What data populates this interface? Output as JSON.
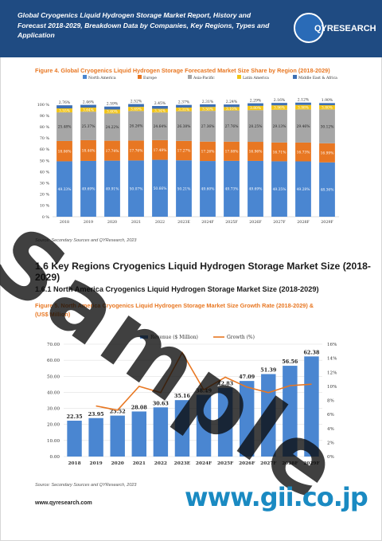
{
  "header": {
    "title": "Global Cryogenics Liquid Hydrogen Storage Market Report, History and Forecast 2018-2029, Breakdown Data by Companies, Key Regions, Types and Application",
    "logo_text": "QYRESEARCH"
  },
  "figure4": {
    "caption": "Figure 4.   Global Cryogenics Liquid Hydrogen Storage Forecasted Market Size Share by Region (2018-2029)",
    "source": "Source: Secondary Sources and QYResearch, 2023"
  },
  "section": {
    "h1": "1.6  Key Regions Cryogenics Liquid Hydrogen Storage Market Size (2018-2029)",
    "h2": "1.6.1  North America Cryogenics Liquid Hydrogen Storage Market Size (2018-2029)"
  },
  "figure5": {
    "caption_line1": "Figure 5.   North America Cryogenics Liquid Hydrogen Storage Market Size Growth Rate (2018-2029) &",
    "caption_line2": "(US$ Million)",
    "source": "Source: Secondary Sources and QYResearch, 2023"
  },
  "footer": {
    "url": "www.qyresearch.com"
  },
  "watermarks": {
    "sample": "Sample",
    "gii": "www.gii.co.jp"
  },
  "colors": {
    "header_bg": "#1f4b82",
    "north_america": "#4a86d1",
    "europe": "#e87722",
    "asia_pacific": "#a6a6a6",
    "latin_america": "#f2c417",
    "mea": "#3d6fb3",
    "revenue_bar": "#4a86d1",
    "growth_line": "#e87722"
  },
  "chart_data": [
    {
      "type": "bar",
      "stacked": true,
      "categories": [
        "2018",
        "2019",
        "2020",
        "2021",
        "2022",
        "2023E",
        "2024F",
        "2025F",
        "2026F",
        "2027F",
        "2028F",
        "2029F"
      ],
      "series": [
        {
          "name": "North America",
          "values": [
            49.33,
            49.69,
            49.91,
            50.07,
            50.66,
            50.21,
            49.6,
            49.73,
            49.69,
            49.35,
            49.28,
            48.36
          ]
        },
        {
          "name": "Europe",
          "values": [
            18.06,
            18.44,
            17.74,
            17.76,
            17.49,
            17.27,
            17.26,
            17.08,
            16.96,
            16.71,
            16.73,
            16.99
          ]
        },
        {
          "name": "Asia-Pacific",
          "values": [
            25.48,
            25.37,
            24.22,
            26.26,
            24.64,
            26.38,
            27.36,
            27.76,
            28.25,
            29.13,
            29.46,
            30.12
          ]
        },
        {
          "name": "Latin America",
          "values": [
            3.55,
            3.64,
            3.6,
            3.69,
            3.34,
            3.31,
            3.5,
            3.1,
            3.8,
            3.96,
            3.98,
            3.8
          ]
        },
        {
          "name": "Middle East & Africa",
          "values": [
            2.76,
            2.46,
            2.59,
            2.52,
            2.45,
            2.37,
            2.31,
            2.24,
            2.29,
            2.16,
            2.12,
            1.9
          ]
        }
      ],
      "y_ticks": [
        "0 %",
        "10 %",
        "20 %",
        "30 %",
        "40 %",
        "50 %",
        "60 %",
        "70 %",
        "80 %",
        "90 %",
        "100 %"
      ],
      "ylim": [
        0,
        100
      ],
      "legend_position": "top",
      "grid": false
    },
    {
      "type": "bar+line",
      "categories": [
        "2018",
        "2019",
        "2020",
        "2021",
        "2022",
        "2023E",
        "2024F",
        "2025F",
        "2026F",
        "2027F",
        "2028F",
        "2029F"
      ],
      "series": [
        {
          "name": "Revenue ($ Million)",
          "type": "bar",
          "axis": "left",
          "values": [
            22.35,
            23.95,
            25.52,
            28.08,
            30.63,
            35.16,
            38.49,
            42.83,
            47.09,
            51.39,
            56.56,
            62.38
          ]
        },
        {
          "name": "Growth (%)",
          "type": "line",
          "axis": "right",
          "values": [
            null,
            7.2,
            6.6,
            10.0,
            9.1,
            14.8,
            9.5,
            11.3,
            9.9,
            9.1,
            10.1,
            10.3
          ]
        }
      ],
      "y_left_ticks": [
        "0.00",
        "10.00",
        "20.00",
        "30.00",
        "40.00",
        "50.00",
        "60.00",
        "70.00"
      ],
      "y_right_ticks": [
        "0%",
        "2%",
        "4%",
        "6%",
        "8%",
        "10%",
        "12%",
        "14%",
        "16%"
      ],
      "ylim_left": [
        0,
        70
      ],
      "ylim_right": [
        0,
        16
      ],
      "legend_position": "top",
      "grid": true
    }
  ]
}
